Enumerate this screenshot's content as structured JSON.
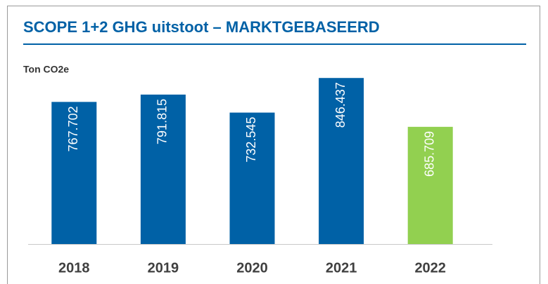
{
  "chart_data": {
    "type": "bar",
    "title": "SCOPE 1+2 GHG uitstoot – MARKTGEBASEERD",
    "ylabel": "Ton CO2e",
    "categories": [
      "2018",
      "2019",
      "2020",
      "2021",
      "2022"
    ],
    "values": [
      767702,
      791815,
      732545,
      846437,
      685709
    ],
    "value_labels": [
      "767.702",
      "791.815",
      "732.545",
      "846.437",
      "685.709"
    ],
    "colors": [
      "#0061a6",
      "#0061a6",
      "#0061a6",
      "#0061a6",
      "#92d050"
    ],
    "ylim": [
      300000,
      900000
    ]
  }
}
